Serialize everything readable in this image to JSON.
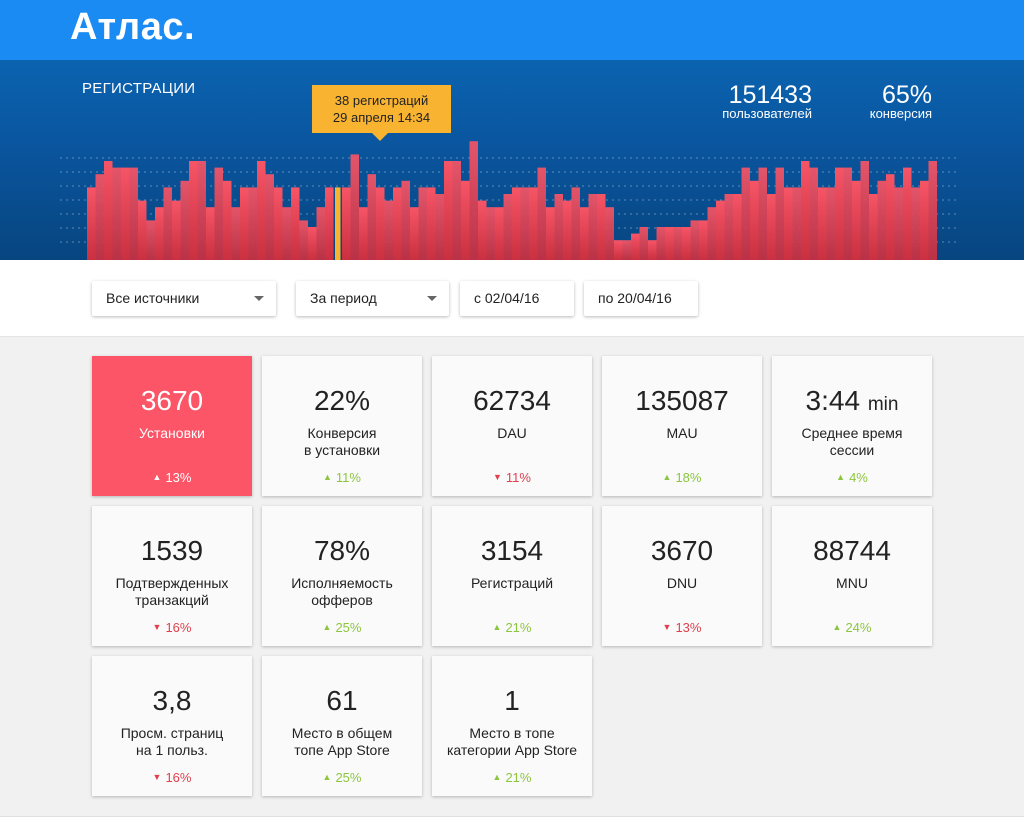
{
  "app": {
    "logo": "Атлас."
  },
  "hero": {
    "title": "РЕГИСТРАЦИИ",
    "tooltip": {
      "line1": "38 регистраций",
      "line2": "29 апреля 14:34"
    },
    "stats": [
      {
        "value": "151433",
        "label": "пользователей"
      },
      {
        "value": "65%",
        "label": "конверсия"
      }
    ]
  },
  "chart_data": {
    "type": "bar",
    "title": "РЕГИСТРАЦИИ",
    "highlight_index": 29,
    "values": [
      55,
      65,
      75,
      70,
      70,
      70,
      45,
      30,
      40,
      55,
      45,
      60,
      75,
      75,
      40,
      70,
      60,
      40,
      55,
      55,
      75,
      65,
      55,
      40,
      55,
      30,
      25,
      40,
      55,
      55,
      55,
      80,
      40,
      65,
      55,
      45,
      55,
      60,
      40,
      55,
      55,
      50,
      75,
      75,
      60,
      90,
      45,
      40,
      40,
      50,
      55,
      55,
      55,
      70,
      40,
      50,
      45,
      55,
      40,
      50,
      50,
      40,
      15,
      15,
      20,
      25,
      15,
      25,
      25,
      25,
      25,
      30,
      30,
      40,
      45,
      50,
      50,
      70,
      60,
      70,
      50,
      70,
      55,
      55,
      75,
      70,
      55,
      55,
      70,
      70,
      60,
      75,
      50,
      60,
      65,
      55,
      70,
      55,
      60,
      75
    ],
    "colors": {
      "bar": "#f05061",
      "highlight": "#f8b431"
    }
  },
  "filters": {
    "source": "Все источники",
    "period": "За период",
    "from": "с 02/04/16",
    "to": "по 20/04/16"
  },
  "cards": [
    {
      "value": "3670",
      "unit": "",
      "label1": "Установки",
      "label2": "",
      "change": "13%",
      "dir": "up"
    },
    {
      "value": "22%",
      "unit": "",
      "label1": "Конверсия",
      "label2": "в установки",
      "change": "11%",
      "dir": "up"
    },
    {
      "value": "62734",
      "unit": "",
      "label1": "DAU",
      "label2": "",
      "change": "11%",
      "dir": "down"
    },
    {
      "value": "135087",
      "unit": "",
      "label1": "MAU",
      "label2": "",
      "change": "18%",
      "dir": "up"
    },
    {
      "value": "3:44",
      "unit": "min",
      "label1": "Среднее время",
      "label2": "сессии",
      "change": "4%",
      "dir": "up"
    },
    {
      "value": "1539",
      "unit": "",
      "label1": "Подтвержденных",
      "label2": "транзакций",
      "change": "16%",
      "dir": "down"
    },
    {
      "value": "78%",
      "unit": "",
      "label1": "Исполняемость",
      "label2": "офферов",
      "change": "25%",
      "dir": "up"
    },
    {
      "value": "3154",
      "unit": "",
      "label1": "Регистраций",
      "label2": "",
      "change": "21%",
      "dir": "up"
    },
    {
      "value": "3670",
      "unit": "",
      "label1": "DNU",
      "label2": "",
      "change": "13%",
      "dir": "down"
    },
    {
      "value": "88744",
      "unit": "",
      "label1": "MNU",
      "label2": "",
      "change": "24%",
      "dir": "up"
    },
    {
      "value": "3,8",
      "unit": "",
      "label1": "Просм. страниц",
      "label2": "на 1 польз.",
      "change": "16%",
      "dir": "down"
    },
    {
      "value": "61",
      "unit": "",
      "label1": "Место в общем",
      "label2": "топе App Store",
      "change": "25%",
      "dir": "up"
    },
    {
      "value": "1",
      "unit": "",
      "label1": "Место в топе",
      "label2": "категории App Store",
      "change": "21%",
      "dir": "up"
    }
  ],
  "arrows": {
    "up": "▲",
    "down": "▼"
  }
}
